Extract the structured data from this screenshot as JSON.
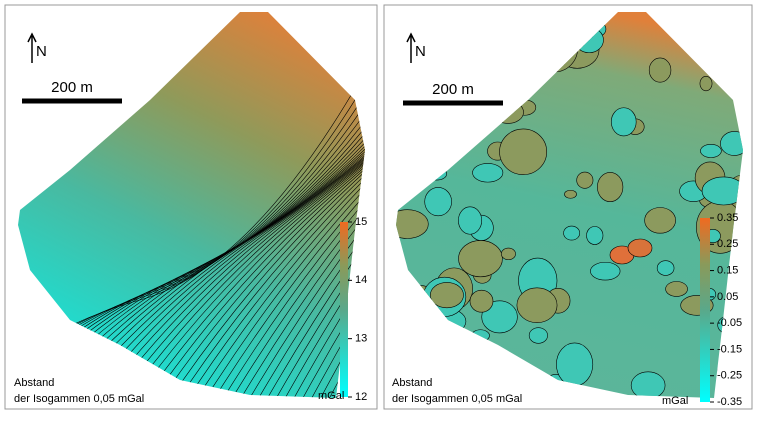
{
  "panels": [
    {
      "north": "N",
      "scale_label": "200 m",
      "colorbar": {
        "lim": [
          12,
          15
        ],
        "ticks": [
          15,
          14,
          13,
          12
        ]
      },
      "unit": "mGal",
      "caption": [
        "Abstand",
        "der Isogammen 0,05 mGal"
      ]
    },
    {
      "north": "N",
      "scale_label": "200 m",
      "colorbar": {
        "lim": [
          -0.35,
          0.35
        ],
        "ticks": [
          0.35,
          0.25,
          0.15,
          0.05,
          -0.05,
          -0.15,
          -0.25,
          -0.35
        ]
      },
      "unit": "mGal",
      "caption": [
        "Abstand",
        "der Isogammen 0,05 mGal"
      ]
    }
  ]
}
